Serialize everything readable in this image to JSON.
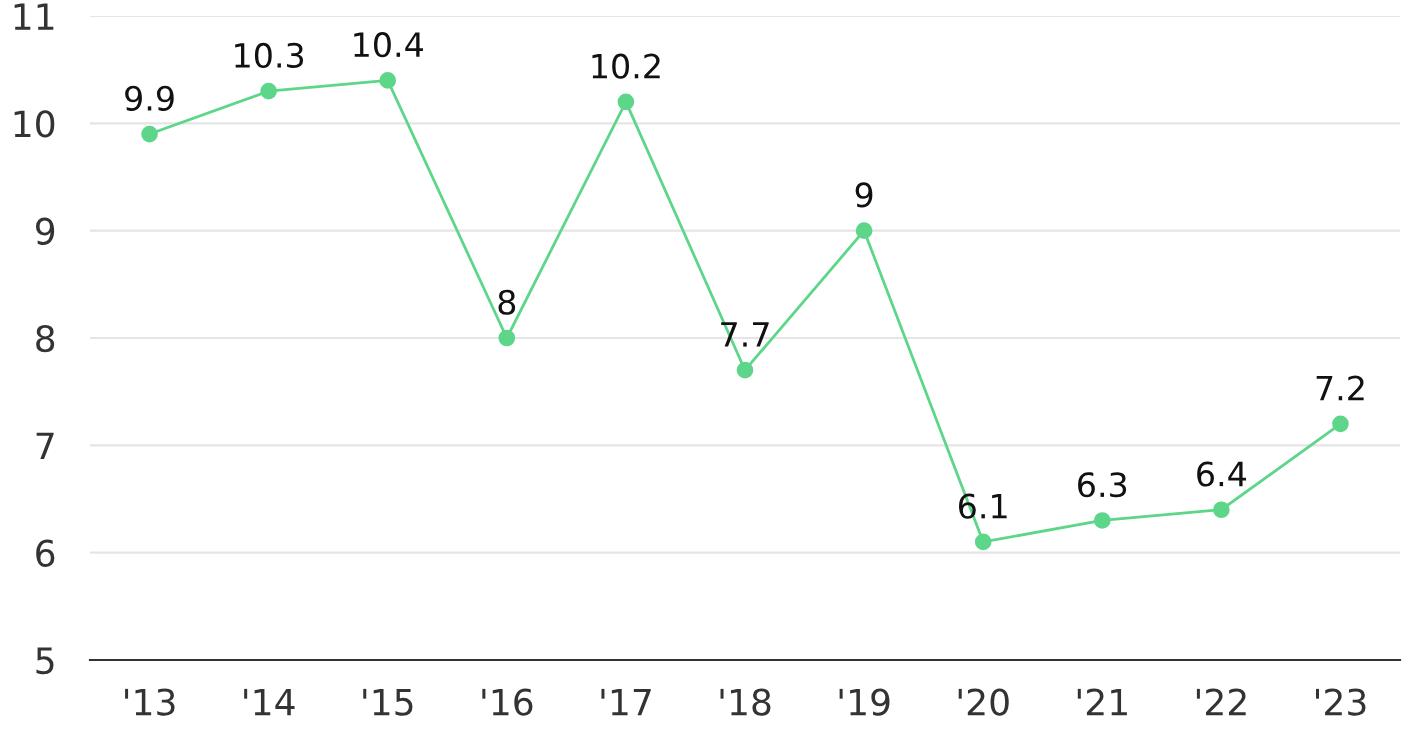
{
  "chart_data": {
    "type": "line",
    "categories": [
      "'13",
      "'14",
      "'15",
      "'16",
      "'17",
      "'18",
      "'19",
      "'20",
      "'21",
      "'22",
      "'23"
    ],
    "series": [
      {
        "color": "#5dd68a",
        "values": [
          9.9,
          10.3,
          10.4,
          8,
          10.2,
          7.7,
          9,
          6.1,
          6.3,
          6.4,
          7.2
        ]
      }
    ],
    "ylim": [
      5,
      11
    ],
    "yticks": [
      5,
      6,
      7,
      8,
      9,
      10,
      11
    ],
    "grid": "y",
    "data_labels": true,
    "marker": "circle",
    "line_style": "solid",
    "legend": false
  }
}
